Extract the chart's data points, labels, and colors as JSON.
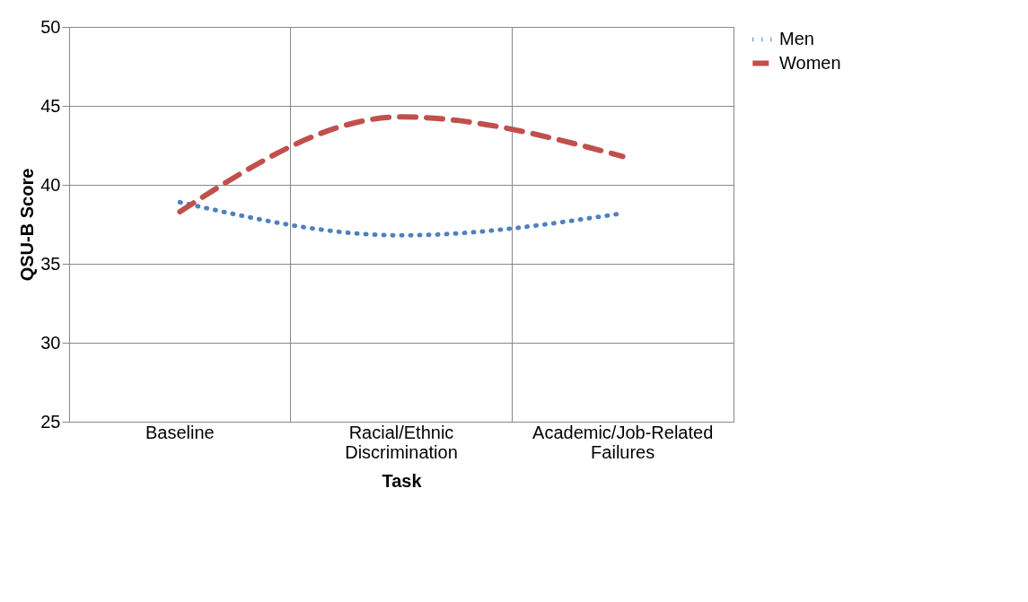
{
  "chart_data": {
    "type": "line",
    "xlabel": "Task",
    "ylabel": "QSU-B Score",
    "categories": [
      "Baseline",
      "Racial/Ethnic Discrimination",
      "Academic/Job-Related Failures"
    ],
    "series": [
      {
        "name": "Men",
        "color": "#4f81bd",
        "values": [
          38.9,
          36.8,
          38.2
        ],
        "line_style": "dotted"
      },
      {
        "name": "Women",
        "color": "#c0504d",
        "values": [
          38.3,
          44.3,
          41.8
        ],
        "line_style": "dashed"
      }
    ],
    "ylim": [
      25,
      50
    ],
    "yticks": [
      25,
      30,
      35,
      40,
      45,
      50
    ],
    "grid": true,
    "legend": "right",
    "marker": "none"
  }
}
